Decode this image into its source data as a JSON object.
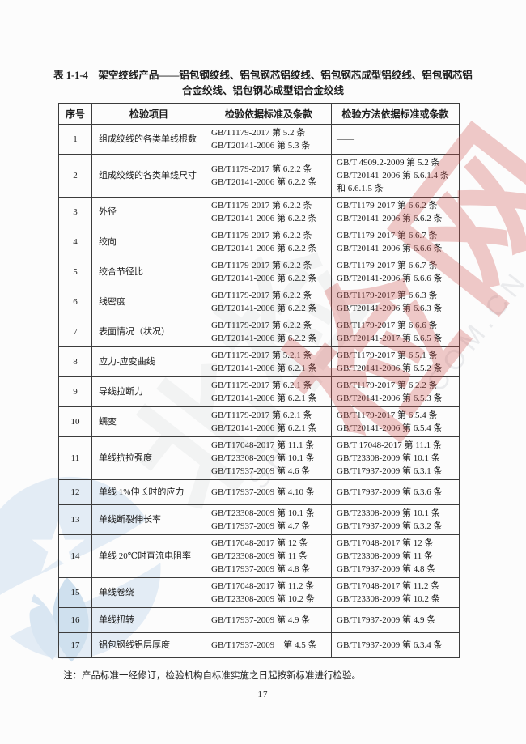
{
  "doc": {
    "title": "表 1-1-4　架空绞线产品——铝包钢绞线、铝包钢芯铝绞线、铝包钢芯成型铝绞线、铝包钢芯铝合金绞线、铝包钢芯成型铝合金绞线",
    "note": "注：产品标准一经修订，检验机构自标准实施之日起按新标准进行检验。",
    "page_number": "17"
  },
  "table": {
    "columns": [
      "序号",
      "检验项目",
      "检验依据标准及条款",
      "检验方法依据标准或条款"
    ],
    "rows": [
      {
        "no": "1",
        "item": "组成绞线的各类单线根数",
        "basis": [
          "GB/T1179-2017 第 5.2 条",
          "GB/T20141-2006 第 5.3 条"
        ],
        "method": [
          "——"
        ]
      },
      {
        "no": "2",
        "item": "组成绞线的各类单线尺寸",
        "basis": [
          "GB/T1179-2017 第 6.2.2 条",
          "GB/T20141-2006 第 6.2.2 条"
        ],
        "method": [
          "GB/T 4909.2-2009 第 5.2 条",
          "GB/T20141-2006 第 6.6.1.4 条",
          "和 6.6.1.5 条"
        ]
      },
      {
        "no": "3",
        "item": "外径",
        "basis": [
          "GB/T1179-2017 第 6.2.2 条",
          "GB/T20141-2006 第 6.2.2 条"
        ],
        "method": [
          "GB/T1179-2017 第 6.6.2 条",
          "GB/T20141-2006 第 6.6.2 条"
        ]
      },
      {
        "no": "4",
        "item": "绞向",
        "basis": [
          "GB/T1179-2017 第 6.2.2 条",
          "GB/T20141-2006 第 6.2.2 条"
        ],
        "method": [
          "GB/T1179-2017 第 6.6.7 条",
          "GB/T20141-2006 第 6.6.6 条"
        ]
      },
      {
        "no": "5",
        "item": "绞合节径比",
        "basis": [
          "GB/T1179-2017 第 6.2.2 条",
          "GB/T20141-2006 第 6.2.2 条"
        ],
        "method": [
          "GB/T1179-2017 第 6.6.7 条",
          "GB/T20141-2006 第 6.6.6 条"
        ]
      },
      {
        "no": "6",
        "item": "线密度",
        "basis": [
          "GB/T1179-2017 第 6.2.2 条",
          "GB/T20141-2006 第 6.2.2 条"
        ],
        "method": [
          "GB/T1179-2017 第 6.6.3 条",
          "GB/T20141-2006 第 6.6.3 条"
        ]
      },
      {
        "no": "7",
        "item": "表面情况（状况）",
        "basis": [
          "GB/T1179-2017 第 6.2.2 条",
          "GB/T20141-2006 第 6.2.2 条"
        ],
        "method": [
          "GB/T1179-2017 第 6.6.6 条",
          "GB/T20141-2017 第 6.6.5 条"
        ]
      },
      {
        "no": "8",
        "item": "应力-应变曲线",
        "basis": [
          "GB/T1179-2017 第 5.2.1 条",
          "GB/T20141-2006 第 6.2.1 条"
        ],
        "method": [
          "GB/T1179-2017 第 6.5.1 条",
          "GB/T20141-2006 第 6.5.2 条"
        ]
      },
      {
        "no": "9",
        "item": "导线拉断力",
        "basis": [
          "GB/T1179-2017 第 6.2.1 条",
          "GB/T20141-2006 第 6.2.1 条"
        ],
        "method": [
          "GB/T1179-2017 第 6.2.2 条",
          "GB/T20141-2006 第 6.5.3 条"
        ]
      },
      {
        "no": "10",
        "item": "蠕变",
        "basis": [
          "GB/T1179-2017 第 6.2.1 条",
          "GB/T20141-2006 第 6.2.1 条"
        ],
        "method": [
          "GB/T1179-2017 第 6.5.4 条",
          "GB/T20141-2006 第 6.5.4 条"
        ]
      },
      {
        "no": "11",
        "item": "单线抗拉强度",
        "basis": [
          "GB/T17048-2017 第 11.1 条",
          "GB/T23308-2009 第 10.1 条",
          "GB/T17937-2009 第 4.6 条"
        ],
        "method": [
          "GB/T 17048-2017 第 11.1 条",
          "GB/T23308-2009 第 10.1 条",
          "GB/T17937-2009 第 6.3.1 条"
        ]
      },
      {
        "no": "12",
        "item": "单线 1%伸长时的应力",
        "basis": [
          "GB/T17937-2009 第 4.10 条"
        ],
        "method": [
          "GB/T17937-2009 第 6.3.6 条"
        ]
      },
      {
        "no": "13",
        "item": "单线断裂伸长率",
        "basis": [
          "GB/T23308-2009 第 10.1 条",
          "GB/T17937-2009 第 4.7 条"
        ],
        "method": [
          "GB/T23308-2009 第 10.1 条",
          "GB/T17937-2009 第 6.3.2 条"
        ]
      },
      {
        "no": "14",
        "item": "单线 20℃时直流电阻率",
        "basis": [
          "GB/T17048-2017 第 12 条",
          "GB/T23308-2009 第 11 条",
          "GB/T17937-2009 第 4.8 条"
        ],
        "method": [
          "GB/T17048-2017 第 12 条",
          "GB/T23308-2009 第 11 条",
          "GB/T17937-2009 第 4.8 条"
        ]
      },
      {
        "no": "15",
        "item": "单线卷绕",
        "basis": [
          "GB/T17048-2017 第 11.2 条",
          "GB/T23308-2009 第 10.2 条"
        ],
        "method": [
          "GB/T17048-2017 第 11.2 条",
          "GB/T23308-2009 第 10.2 条"
        ]
      },
      {
        "no": "16",
        "item": "单线扭转",
        "basis": [
          "GB/T17937-2009 第 4.9 条"
        ],
        "method": [
          "GB/T17937-2009 第 4.9 条"
        ]
      },
      {
        "no": "17",
        "item": "铝包钢线铝层厚度",
        "basis": [
          "GB/T17937-2009　第 4.5 条"
        ],
        "method": [
          "GB/T17937-2009 第 6.3.4 条"
        ]
      }
    ]
  },
  "watermark": {
    "gray_cn_text": "北检",
    "red_cn_text": "检网",
    "latin_fragment_a": "SH",
    "latin_fragment_b": "COM.CN",
    "colors": {
      "red": "#ce4f4d",
      "gray": "#46525f",
      "logo_blue": "#e3ecf5",
      "logo_blue_dark": "#cfe0ee"
    }
  }
}
